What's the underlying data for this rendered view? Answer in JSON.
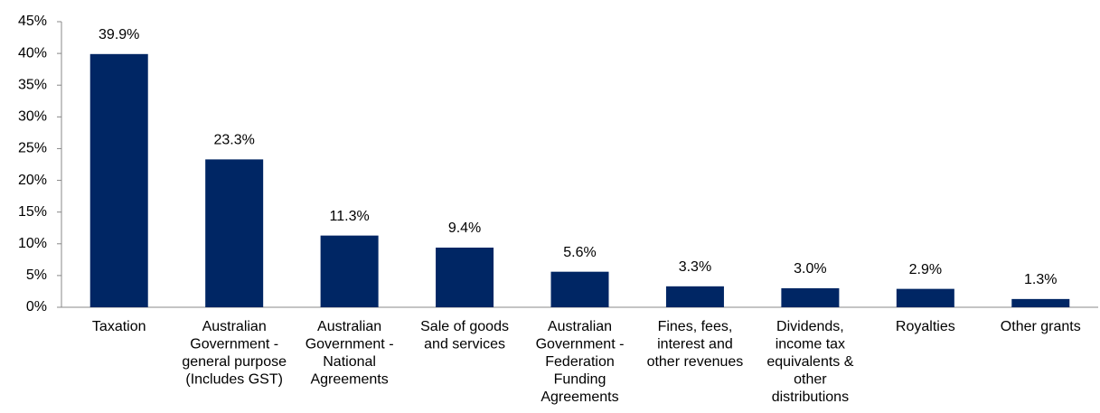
{
  "chart_data": {
    "type": "bar",
    "categories": [
      "Taxation",
      "Australian Government - general purpose (Includes GST)",
      "Australian Government - National Agreements",
      "Sale of goods and services",
      "Australian Government - Federation Funding Agreements",
      "Fines, fees, interest and other revenues",
      "Dividends, income tax equivalents & other distributions",
      "Royalties",
      "Other grants"
    ],
    "values": [
      39.9,
      23.3,
      11.3,
      9.4,
      5.6,
      3.3,
      3.0,
      2.9,
      1.3
    ],
    "value_labels": [
      "39.9%",
      "23.3%",
      "11.3%",
      "9.4%",
      "5.6%",
      "3.3%",
      "3.0%",
      "2.9%",
      "1.3%"
    ],
    "color": "#002664",
    "ylim": [
      0,
      45
    ],
    "yticks": [
      {
        "value": 0,
        "label": "0%"
      },
      {
        "value": 5,
        "label": "5%"
      },
      {
        "value": 10,
        "label": "10%"
      },
      {
        "value": 15,
        "label": "15%"
      },
      {
        "value": 20,
        "label": "20%"
      },
      {
        "value": 25,
        "label": "25%"
      },
      {
        "value": 30,
        "label": "30%"
      },
      {
        "value": 35,
        "label": "35%"
      },
      {
        "value": 40,
        "label": "40%"
      },
      {
        "value": 45,
        "label": "45%"
      }
    ],
    "grid": false
  }
}
